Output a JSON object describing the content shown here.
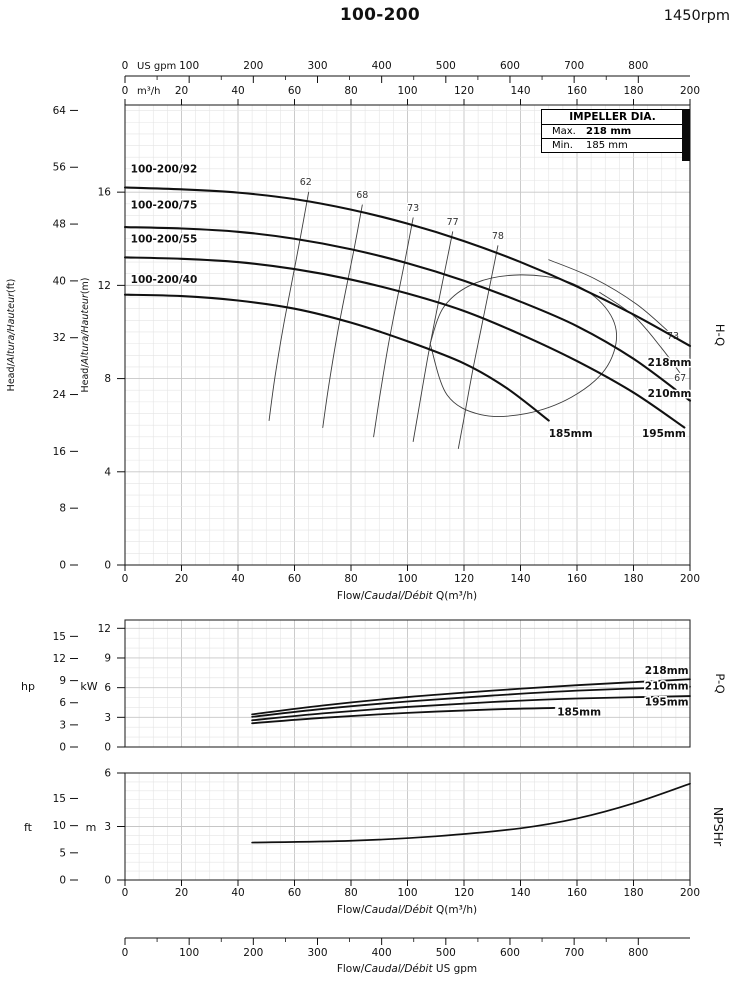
{
  "header": {
    "title": "100-200",
    "rpm": "1450rpm"
  },
  "impeller_box": {
    "title": "IMPELLER DIA.",
    "max_label": "Max.",
    "max_value": "218 mm",
    "min_label": "Min.",
    "min_value": "185 mm"
  },
  "axes_labels": {
    "hp": "hp",
    "kw": "kW",
    "ft": "ft",
    "m": "m"
  },
  "top_axes": {
    "usgpm": {
      "unit": "US gpm",
      "ticks": [
        0,
        100,
        200,
        300,
        400,
        500,
        600,
        700,
        800
      ]
    },
    "m3h": {
      "unit": "m³/h",
      "ticks": [
        0,
        20,
        40,
        60,
        80,
        100,
        120,
        140,
        160,
        180,
        200
      ]
    }
  },
  "bottom_axis": {
    "ticks": [
      0,
      100,
      200,
      300,
      400,
      500,
      600,
      700,
      800
    ],
    "label_segments": [
      {
        "t": "Flow/",
        "i": 0
      },
      {
        "t": "Caudal/Débit",
        "i": 1
      },
      {
        "t": "  US gpm",
        "i": 0
      }
    ]
  },
  "chart_data": [
    {
      "id": "hq",
      "type": "line",
      "right_label": "H-Q",
      "grid": "on",
      "x": {
        "min": 0,
        "max": 200,
        "ticks": [
          0,
          20,
          40,
          60,
          80,
          100,
          120,
          140,
          160,
          180,
          200
        ],
        "label_segments": [
          {
            "t": "Flow/",
            "i": 0
          },
          {
            "t": "Caudal/Débit",
            "i": 1
          },
          {
            "t": " Q(m³/h)",
            "i": 0
          }
        ]
      },
      "y": {
        "max_m": 19.74,
        "m_ticks": [
          0,
          4,
          8,
          12,
          16
        ],
        "ft_ticks": [
          0,
          8,
          16,
          24,
          32,
          40,
          48,
          56,
          64
        ],
        "label_inner_segments": [
          {
            "t": "Head/",
            "i": 0
          },
          {
            "t": "Altura/Hauteur",
            "i": 1
          },
          {
            "t": "(m)",
            "i": 0
          }
        ],
        "label_outer_segments": [
          {
            "t": "Head/",
            "i": 0
          },
          {
            "t": "Altura/Hauteur",
            "i": 1
          },
          {
            "t": "(ft)",
            "i": 0
          }
        ]
      },
      "series": [
        {
          "name": "100-200/92",
          "impeller": "218mm",
          "name_at": [
            2,
            16.85
          ],
          "impeller_at": [
            185,
            8.55
          ],
          "points": [
            [
              0,
              16.2
            ],
            [
              20,
              16.12
            ],
            [
              40,
              15.98
            ],
            [
              60,
              15.7
            ],
            [
              80,
              15.25
            ],
            [
              100,
              14.65
            ],
            [
              120,
              13.9
            ],
            [
              140,
              13.0
            ],
            [
              160,
              11.95
            ],
            [
              180,
              10.75
            ],
            [
              200,
              9.4
            ]
          ]
        },
        {
          "name": "100-200/75",
          "impeller": "210mm",
          "name_at": [
            2,
            15.3
          ],
          "impeller_at": [
            185,
            7.2
          ],
          "points": [
            [
              0,
              14.5
            ],
            [
              20,
              14.44
            ],
            [
              40,
              14.3
            ],
            [
              60,
              14.0
            ],
            [
              80,
              13.55
            ],
            [
              100,
              12.95
            ],
            [
              120,
              12.2
            ],
            [
              140,
              11.3
            ],
            [
              160,
              10.25
            ],
            [
              180,
              8.85
            ],
            [
              200,
              7.05
            ]
          ]
        },
        {
          "name": "100-200/55",
          "impeller": "195mm",
          "name_at": [
            2,
            13.85
          ],
          "impeller_at": [
            183,
            5.5
          ],
          "points": [
            [
              0,
              13.2
            ],
            [
              20,
              13.14
            ],
            [
              40,
              13.0
            ],
            [
              60,
              12.7
            ],
            [
              80,
              12.25
            ],
            [
              100,
              11.65
            ],
            [
              120,
              10.9
            ],
            [
              140,
              9.9
            ],
            [
              160,
              8.75
            ],
            [
              180,
              7.4
            ],
            [
              198,
              5.9
            ]
          ]
        },
        {
          "name": "100-200/40",
          "impeller": "185mm",
          "name_at": [
            2,
            12.1
          ],
          "impeller_at": [
            150,
            5.5
          ],
          "points": [
            [
              0,
              11.6
            ],
            [
              20,
              11.54
            ],
            [
              40,
              11.35
            ],
            [
              60,
              11.0
            ],
            [
              80,
              10.4
            ],
            [
              100,
              9.6
            ],
            [
              120,
              8.65
            ],
            [
              135,
              7.6
            ],
            [
              150,
              6.2
            ]
          ]
        }
      ],
      "efficiency": [
        {
          "label": "62",
          "label_at": [
            64,
            16.3
          ],
          "points": [
            [
              65,
              16.0
            ],
            [
              62,
              14.0
            ],
            [
              59,
              12.1
            ],
            [
              56,
              10.2
            ],
            [
              53,
              8.0
            ],
            [
              51,
              6.2
            ]
          ]
        },
        {
          "label": "68",
          "label_at": [
            84,
            15.75
          ],
          "points": [
            [
              84,
              15.45
            ],
            [
              81,
              13.5
            ],
            [
              78,
              11.7
            ],
            [
              75,
              9.8
            ],
            [
              72,
              7.6
            ],
            [
              70,
              5.9
            ]
          ]
        },
        {
          "label": "73",
          "label_at": [
            102,
            15.2
          ],
          "points": [
            [
              102,
              14.9
            ],
            [
              99,
              13.0
            ],
            [
              96,
              11.2
            ],
            [
              93,
              9.3
            ],
            [
              90,
              7.1
            ],
            [
              88,
              5.5
            ]
          ]
        },
        {
          "label": "77",
          "label_at": [
            116,
            14.6
          ],
          "points": [
            [
              116,
              14.3
            ],
            [
              113,
              12.5
            ],
            [
              110,
              10.7
            ],
            [
              107,
              8.8
            ],
            [
              104,
              6.7
            ],
            [
              102,
              5.3
            ]
          ]
        },
        {
          "label": "78",
          "label_at": [
            132,
            14.0
          ],
          "points": [
            [
              132,
              13.7
            ],
            [
              129,
              11.9
            ],
            [
              126,
              10.1
            ],
            [
              123,
              8.3
            ],
            [
              120,
              6.3
            ],
            [
              118,
              5.0
            ]
          ]
        },
        {
          "label": "73",
          "label_at": [
            194,
            9.7
          ],
          "points": [
            [
              150,
              13.1
            ],
            [
              166,
              12.3
            ],
            [
              181,
              11.2
            ],
            [
              193,
              9.95
            ]
          ]
        },
        {
          "label": "67",
          "label_at": [
            196.5,
            7.9
          ],
          "points": [
            [
              168,
              11.7
            ],
            [
              180,
              10.7
            ],
            [
              190,
              9.3
            ],
            [
              197,
              8.15
            ]
          ]
        },
        {
          "label": "",
          "points": [
            [
              108,
              9.5
            ],
            [
              113,
              11.1
            ],
            [
              124,
              12.1
            ],
            [
              140,
              12.45
            ],
            [
              157,
              12.15
            ],
            [
              169,
              11.2
            ],
            [
              174,
              9.9
            ],
            [
              170,
              8.4
            ],
            [
              158,
              7.2
            ],
            [
              142,
              6.5
            ],
            [
              126,
              6.45
            ],
            [
              114,
              7.3
            ],
            [
              108,
              9.5
            ]
          ]
        }
      ]
    },
    {
      "id": "pq",
      "type": "line",
      "right_label": "P-Q",
      "grid": "on",
      "x": {
        "min": 0,
        "max": 200
      },
      "y": {
        "max_kw": 12.84,
        "kw_ticks": [
          0,
          3,
          6,
          9,
          12
        ],
        "hp_ticks": [
          0,
          3,
          6,
          9,
          12,
          15
        ]
      },
      "series": [
        {
          "name": "218mm",
          "name_at": [
            184,
            7.4
          ],
          "points": [
            [
              45,
              3.3
            ],
            [
              70,
              4.2
            ],
            [
              100,
              5.05
            ],
            [
              130,
              5.7
            ],
            [
              160,
              6.25
            ],
            [
              200,
              6.85
            ]
          ]
        },
        {
          "name": "210mm",
          "name_at": [
            184,
            5.8
          ],
          "points": [
            [
              45,
              3.05
            ],
            [
              70,
              3.85
            ],
            [
              100,
              4.6
            ],
            [
              130,
              5.2
            ],
            [
              160,
              5.7
            ],
            [
              200,
              6.1
            ]
          ]
        },
        {
          "name": "195mm",
          "name_at": [
            184,
            4.2
          ],
          "points": [
            [
              45,
              2.7
            ],
            [
              70,
              3.4
            ],
            [
              100,
              4.05
            ],
            [
              130,
              4.55
            ],
            [
              160,
              4.9
            ],
            [
              200,
              5.15
            ]
          ]
        },
        {
          "name": "185mm",
          "name_at": [
            153,
            3.2
          ],
          "points": [
            [
              45,
              2.4
            ],
            [
              70,
              2.95
            ],
            [
              100,
              3.45
            ],
            [
              130,
              3.8
            ],
            [
              152,
              3.95
            ]
          ]
        }
      ]
    },
    {
      "id": "np",
      "type": "line",
      "right_label": "NPSHr",
      "grid": "on",
      "x": {
        "min": 0,
        "max": 200,
        "ticks": [
          0,
          20,
          40,
          60,
          80,
          100,
          120,
          140,
          160,
          180,
          200
        ],
        "label_segments": [
          {
            "t": "Flow/",
            "i": 0
          },
          {
            "t": "Caudal/Débit",
            "i": 1
          },
          {
            "t": " Q(m³/h)",
            "i": 0
          }
        ]
      },
      "y": {
        "max_m": 6,
        "m_ticks": [
          0,
          3,
          6
        ],
        "ft_ticks": [
          0,
          5,
          10,
          15
        ]
      },
      "series": [
        {
          "name": "NPSHr",
          "points": [
            [
              45,
              2.1
            ],
            [
              80,
              2.2
            ],
            [
              110,
              2.45
            ],
            [
              140,
              2.9
            ],
            [
              160,
              3.45
            ],
            [
              180,
              4.3
            ],
            [
              200,
              5.4
            ]
          ]
        }
      ]
    }
  ]
}
